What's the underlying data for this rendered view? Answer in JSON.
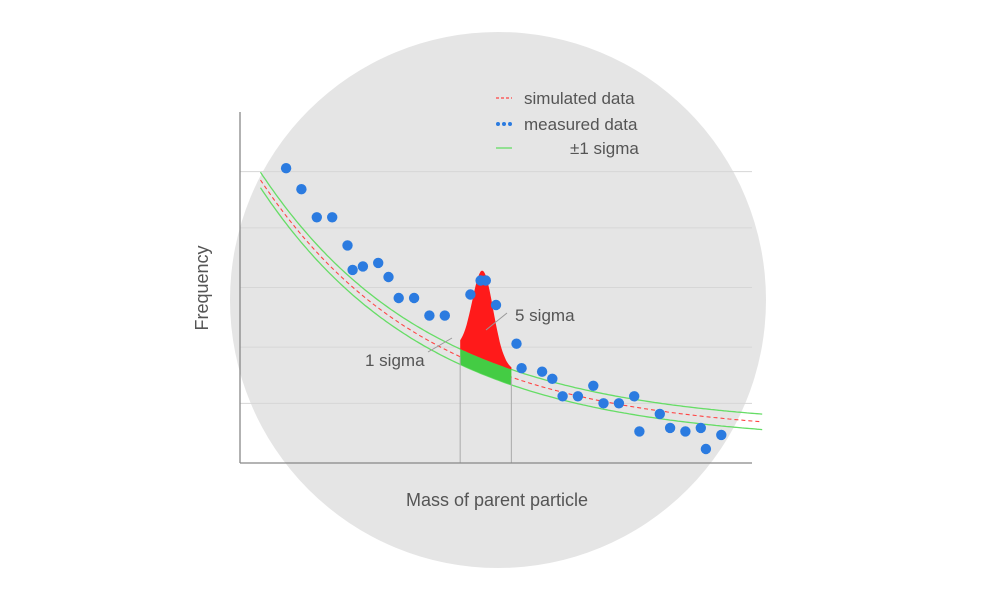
{
  "chart_data": {
    "type": "scatter",
    "title": "",
    "xlabel": "Mass of parent particle",
    "ylabel": "Frequency",
    "xlim": [
      0,
      100
    ],
    "ylim": [
      0,
      100
    ],
    "grid": true,
    "legend_position": "top-right",
    "legend": [
      {
        "label": "simulated data",
        "style": "dashed-line",
        "color": "#ff4444"
      },
      {
        "label": "measured data",
        "style": "dots",
        "color": "#2b7be0"
      },
      {
        "label": "±1 sigma",
        "style": "line",
        "color": "#66dd66"
      }
    ],
    "series": [
      {
        "name": "measured data",
        "points": [
          [
            9,
            84
          ],
          [
            12,
            78
          ],
          [
            15,
            70
          ],
          [
            18,
            70
          ],
          [
            21,
            62
          ],
          [
            22,
            55
          ],
          [
            24,
            56
          ],
          [
            27,
            57
          ],
          [
            29,
            53
          ],
          [
            31,
            47
          ],
          [
            34,
            47
          ],
          [
            37,
            42
          ],
          [
            40,
            42
          ],
          [
            45,
            48
          ],
          [
            47,
            52
          ],
          [
            48,
            52
          ],
          [
            50,
            45
          ],
          [
            54,
            34
          ],
          [
            55,
            27
          ],
          [
            59,
            26
          ],
          [
            61,
            24
          ],
          [
            63,
            19
          ],
          [
            66,
            19
          ],
          [
            69,
            22
          ],
          [
            71,
            17
          ],
          [
            74,
            17
          ],
          [
            77,
            19
          ],
          [
            78,
            9
          ],
          [
            82,
            14
          ],
          [
            84,
            10
          ],
          [
            87,
            9
          ],
          [
            90,
            10
          ],
          [
            91,
            4
          ],
          [
            94,
            8
          ]
        ]
      }
    ],
    "annotations": {
      "peak_label": "5 sigma",
      "baseline_label": "1 sigma",
      "peak_region_x": [
        43,
        53
      ],
      "peak_max_y": 52
    },
    "colors": {
      "background_circle": "#e5e5e5",
      "axis": "#888888",
      "points": "#2b7be0",
      "signal": "#ff1a1a",
      "sigma_band": "#44cc44",
      "simulated": "#ff4444"
    }
  }
}
